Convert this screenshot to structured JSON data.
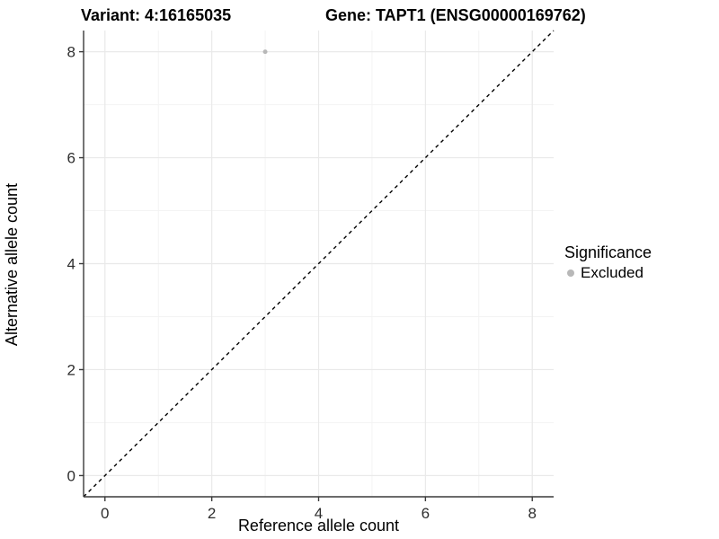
{
  "chart_data": {
    "type": "scatter",
    "title": "Variant: 4:16165035        Gene: TAPT1 (ENSG00000169762)",
    "title_left": "Variant: 4:16165035",
    "title_right": "Gene: TAPT1 (ENSG00000169762)",
    "xlabel": "Reference allele count",
    "ylabel": "Alternative allele count",
    "xlim": [
      -0.4,
      8.4
    ],
    "ylim": [
      -0.4,
      8.4
    ],
    "x_ticks": [
      0,
      2,
      4,
      6,
      8
    ],
    "y_ticks": [
      0,
      2,
      4,
      6,
      8
    ],
    "x_minor_ticks": [
      1,
      3,
      5,
      7
    ],
    "y_minor_ticks": [
      1,
      3,
      5,
      7
    ],
    "grid": true,
    "reference_line": {
      "type": "identity",
      "style": "dashed",
      "color": "#000000"
    },
    "series": [
      {
        "name": "Excluded",
        "color": "#b8b8b8",
        "points": [
          {
            "x": 3,
            "y": 8
          }
        ]
      }
    ],
    "legend": {
      "title": "Significance",
      "position": "right",
      "items": [
        {
          "label": "Excluded",
          "color": "#b8b8b8"
        }
      ]
    }
  },
  "colors": {
    "background": "#ffffff",
    "grid_major": "#e9e9e9",
    "grid_minor": "#f3f3f3",
    "axis_line": "#3a3a3a",
    "tick_mark": "#3a3a3a",
    "tick_label": "#2e2e2e"
  }
}
